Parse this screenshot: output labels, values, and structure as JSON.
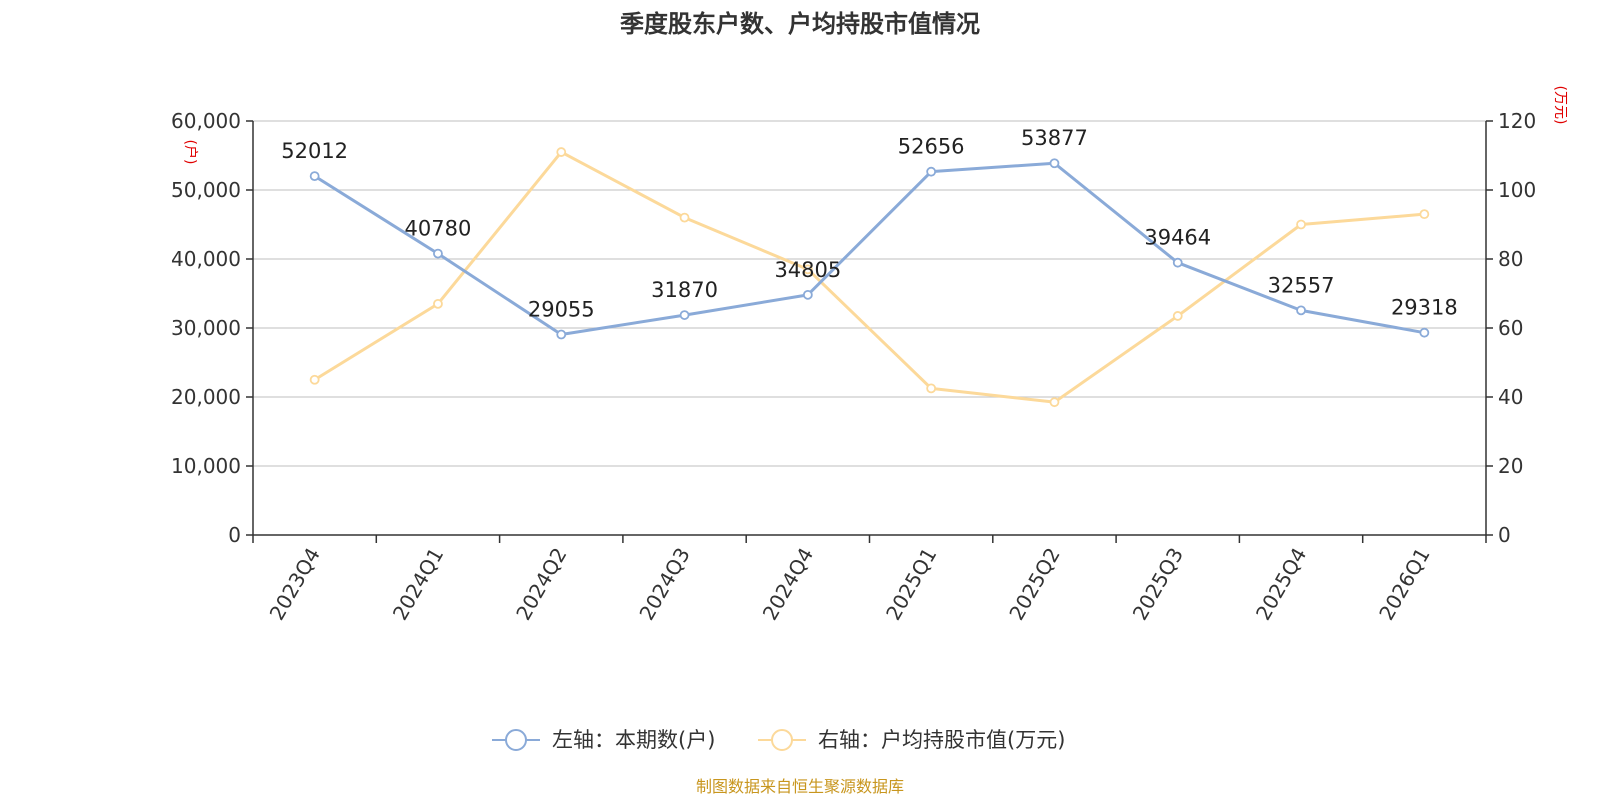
{
  "chart_data": {
    "type": "line",
    "title": "季度股东户数、户均持股市值情况",
    "categories": [
      "2023Q4",
      "2024Q1",
      "2024Q2",
      "2024Q3",
      "2024Q4",
      "2025Q1",
      "2025Q2",
      "2025Q3",
      "2025Q4",
      "2026Q1"
    ],
    "series": [
      {
        "name": "左轴：本期数(户)",
        "axis": "left",
        "color": "#8aaad8",
        "values": [
          52012,
          40780,
          29055,
          31870,
          34805,
          52656,
          53877,
          39464,
          32557,
          29318
        ],
        "labels": [
          "52012",
          "40780",
          "29055",
          "31870",
          "34805",
          "52656",
          "53877",
          "39464",
          "32557",
          "29318"
        ]
      },
      {
        "name": "右轴：户均持股市值(万元)",
        "axis": "right",
        "color": "#fcd99a",
        "values": [
          45,
          67,
          111,
          92,
          77,
          42.5,
          38.5,
          63.5,
          90,
          93
        ]
      }
    ],
    "y_left": {
      "unit": "(户)",
      "ylim": [
        0,
        60000
      ],
      "ticks": [
        0,
        10000,
        20000,
        30000,
        40000,
        50000,
        60000
      ],
      "tick_labels": [
        "0",
        "10,000",
        "20,000",
        "30,000",
        "40,000",
        "50,000",
        "60,000"
      ]
    },
    "y_right": {
      "unit": "(万元)",
      "ylim": [
        0,
        120
      ],
      "ticks": [
        0,
        20,
        40,
        60,
        80,
        100,
        120
      ],
      "tick_labels": [
        "0",
        "20",
        "40",
        "60",
        "80",
        "100",
        "120"
      ]
    },
    "grid": true,
    "legend_position": "bottom-center",
    "source": "制图数据来自恒生聚源数据库"
  }
}
